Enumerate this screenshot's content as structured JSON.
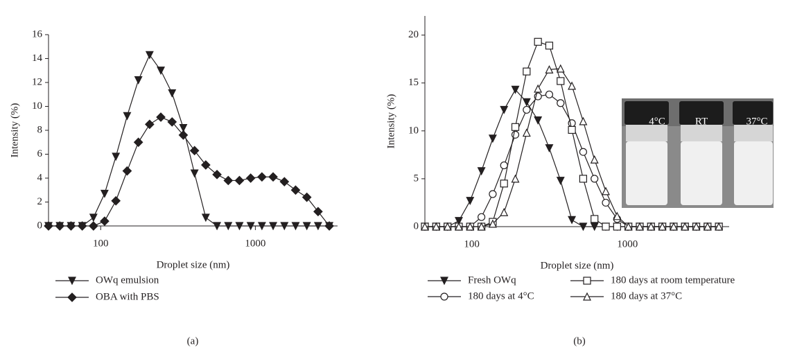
{
  "chart_data": [
    {
      "type": "line",
      "panel_label": "(a)",
      "xlabel": "Droplet size (nm)",
      "ylabel": "Intensity (%)",
      "xscale": "log",
      "xlim": [
        46,
        3400
      ],
      "xticks": [
        100,
        1000
      ],
      "ylim": [
        0,
        16
      ],
      "yticks": [
        0,
        2,
        4,
        6,
        8,
        10,
        12,
        14,
        16
      ],
      "legend": "below",
      "x": [
        46,
        54.4,
        64.3,
        76.0,
        89.8,
        106,
        125.4,
        148.3,
        175.3,
        207.2,
        244.9,
        289.5,
        342.1,
        404.4,
        478,
        565,
        668,
        789,
        933,
        1103,
        1303,
        1541,
        1821,
        2152,
        2544,
        3007
      ],
      "series": [
        {
          "name": "OWq emulsion",
          "color": "#231f20",
          "marker": "triangle-down",
          "marker_fill": "#231f20",
          "values": [
            0,
            0,
            0,
            0,
            0.7,
            2.7,
            5.8,
            9.2,
            12.2,
            14.3,
            13.0,
            11.1,
            8.2,
            4.4,
            0.7,
            0,
            0,
            0,
            0,
            0,
            0,
            0,
            0,
            0,
            0,
            0
          ]
        },
        {
          "name": "OBA with PBS",
          "color": "#231f20",
          "marker": "diamond",
          "marker_fill": "#231f20",
          "values": [
            0,
            0,
            0,
            0,
            0,
            0.4,
            2.1,
            4.6,
            7.0,
            8.5,
            9.1,
            8.7,
            7.6,
            6.3,
            5.1,
            4.3,
            3.8,
            3.8,
            4.0,
            4.1,
            4.1,
            3.7,
            3.0,
            2.4,
            1.2,
            0
          ]
        }
      ]
    },
    {
      "type": "line",
      "panel_label": "(b)",
      "xlabel": "Droplet size (nm)",
      "ylabel": "Intensity (%)",
      "xscale": "log",
      "xlim": [
        50,
        4500
      ],
      "xticks": [
        100,
        1000
      ],
      "ylim": [
        0,
        22
      ],
      "yticks": [
        0,
        5,
        10,
        15,
        20
      ],
      "legend": "below",
      "photo_labels": [
        "4°C",
        "RT",
        "37°C"
      ],
      "x": [
        50,
        59.1,
        69.9,
        82.6,
        97.6,
        115.4,
        136.4,
        161.2,
        190.5,
        225.2,
        266.2,
        314.6,
        371.9,
        439.6,
        519.6,
        614.1,
        725.9,
        858,
        1014,
        1199,
        1417,
        1675,
        1980,
        2340,
        2766,
        3269,
        3864
      ],
      "series": [
        {
          "name": "Fresh OWq",
          "color": "#231f20",
          "marker": "triangle-down",
          "marker_fill": "#231f20",
          "values": [
            0,
            0,
            0,
            0.6,
            2.7,
            5.8,
            9.2,
            12.2,
            14.3,
            13.0,
            11.1,
            8.2,
            4.8,
            0.7,
            0,
            0,
            0,
            0,
            0,
            0,
            0,
            0,
            0,
            0,
            0,
            0,
            0
          ]
        },
        {
          "name": "180 days at 4°C",
          "color": "#231f20",
          "marker": "circle",
          "marker_fill": "#ffffff",
          "values": [
            0,
            0,
            0,
            0,
            0,
            1.0,
            3.4,
            6.4,
            9.6,
            12.2,
            13.6,
            13.8,
            12.9,
            10.8,
            7.8,
            5.0,
            2.5,
            0.8,
            0,
            0,
            0,
            0,
            0,
            0,
            0,
            0,
            0
          ]
        },
        {
          "name": "180 days at room temperature",
          "color": "#231f20",
          "marker": "square",
          "marker_fill": "#ffffff",
          "values": [
            0,
            0,
            0,
            0,
            0,
            0,
            0.5,
            4.5,
            10.4,
            16.2,
            19.3,
            18.9,
            15.2,
            10.1,
            5.0,
            0.8,
            0,
            0,
            0,
            0,
            0,
            0,
            0,
            0,
            0,
            0,
            0
          ]
        },
        {
          "name": "180 days at 37°C",
          "color": "#231f20",
          "marker": "triangle",
          "marker_fill": "#ffffff",
          "values": [
            0,
            0,
            0,
            0,
            0,
            0,
            0.3,
            1.5,
            5.0,
            9.8,
            14.4,
            16.4,
            16.5,
            14.7,
            11.0,
            7.0,
            3.7,
            1.1,
            0,
            0,
            0,
            0,
            0,
            0,
            0,
            0,
            0
          ]
        }
      ]
    }
  ]
}
